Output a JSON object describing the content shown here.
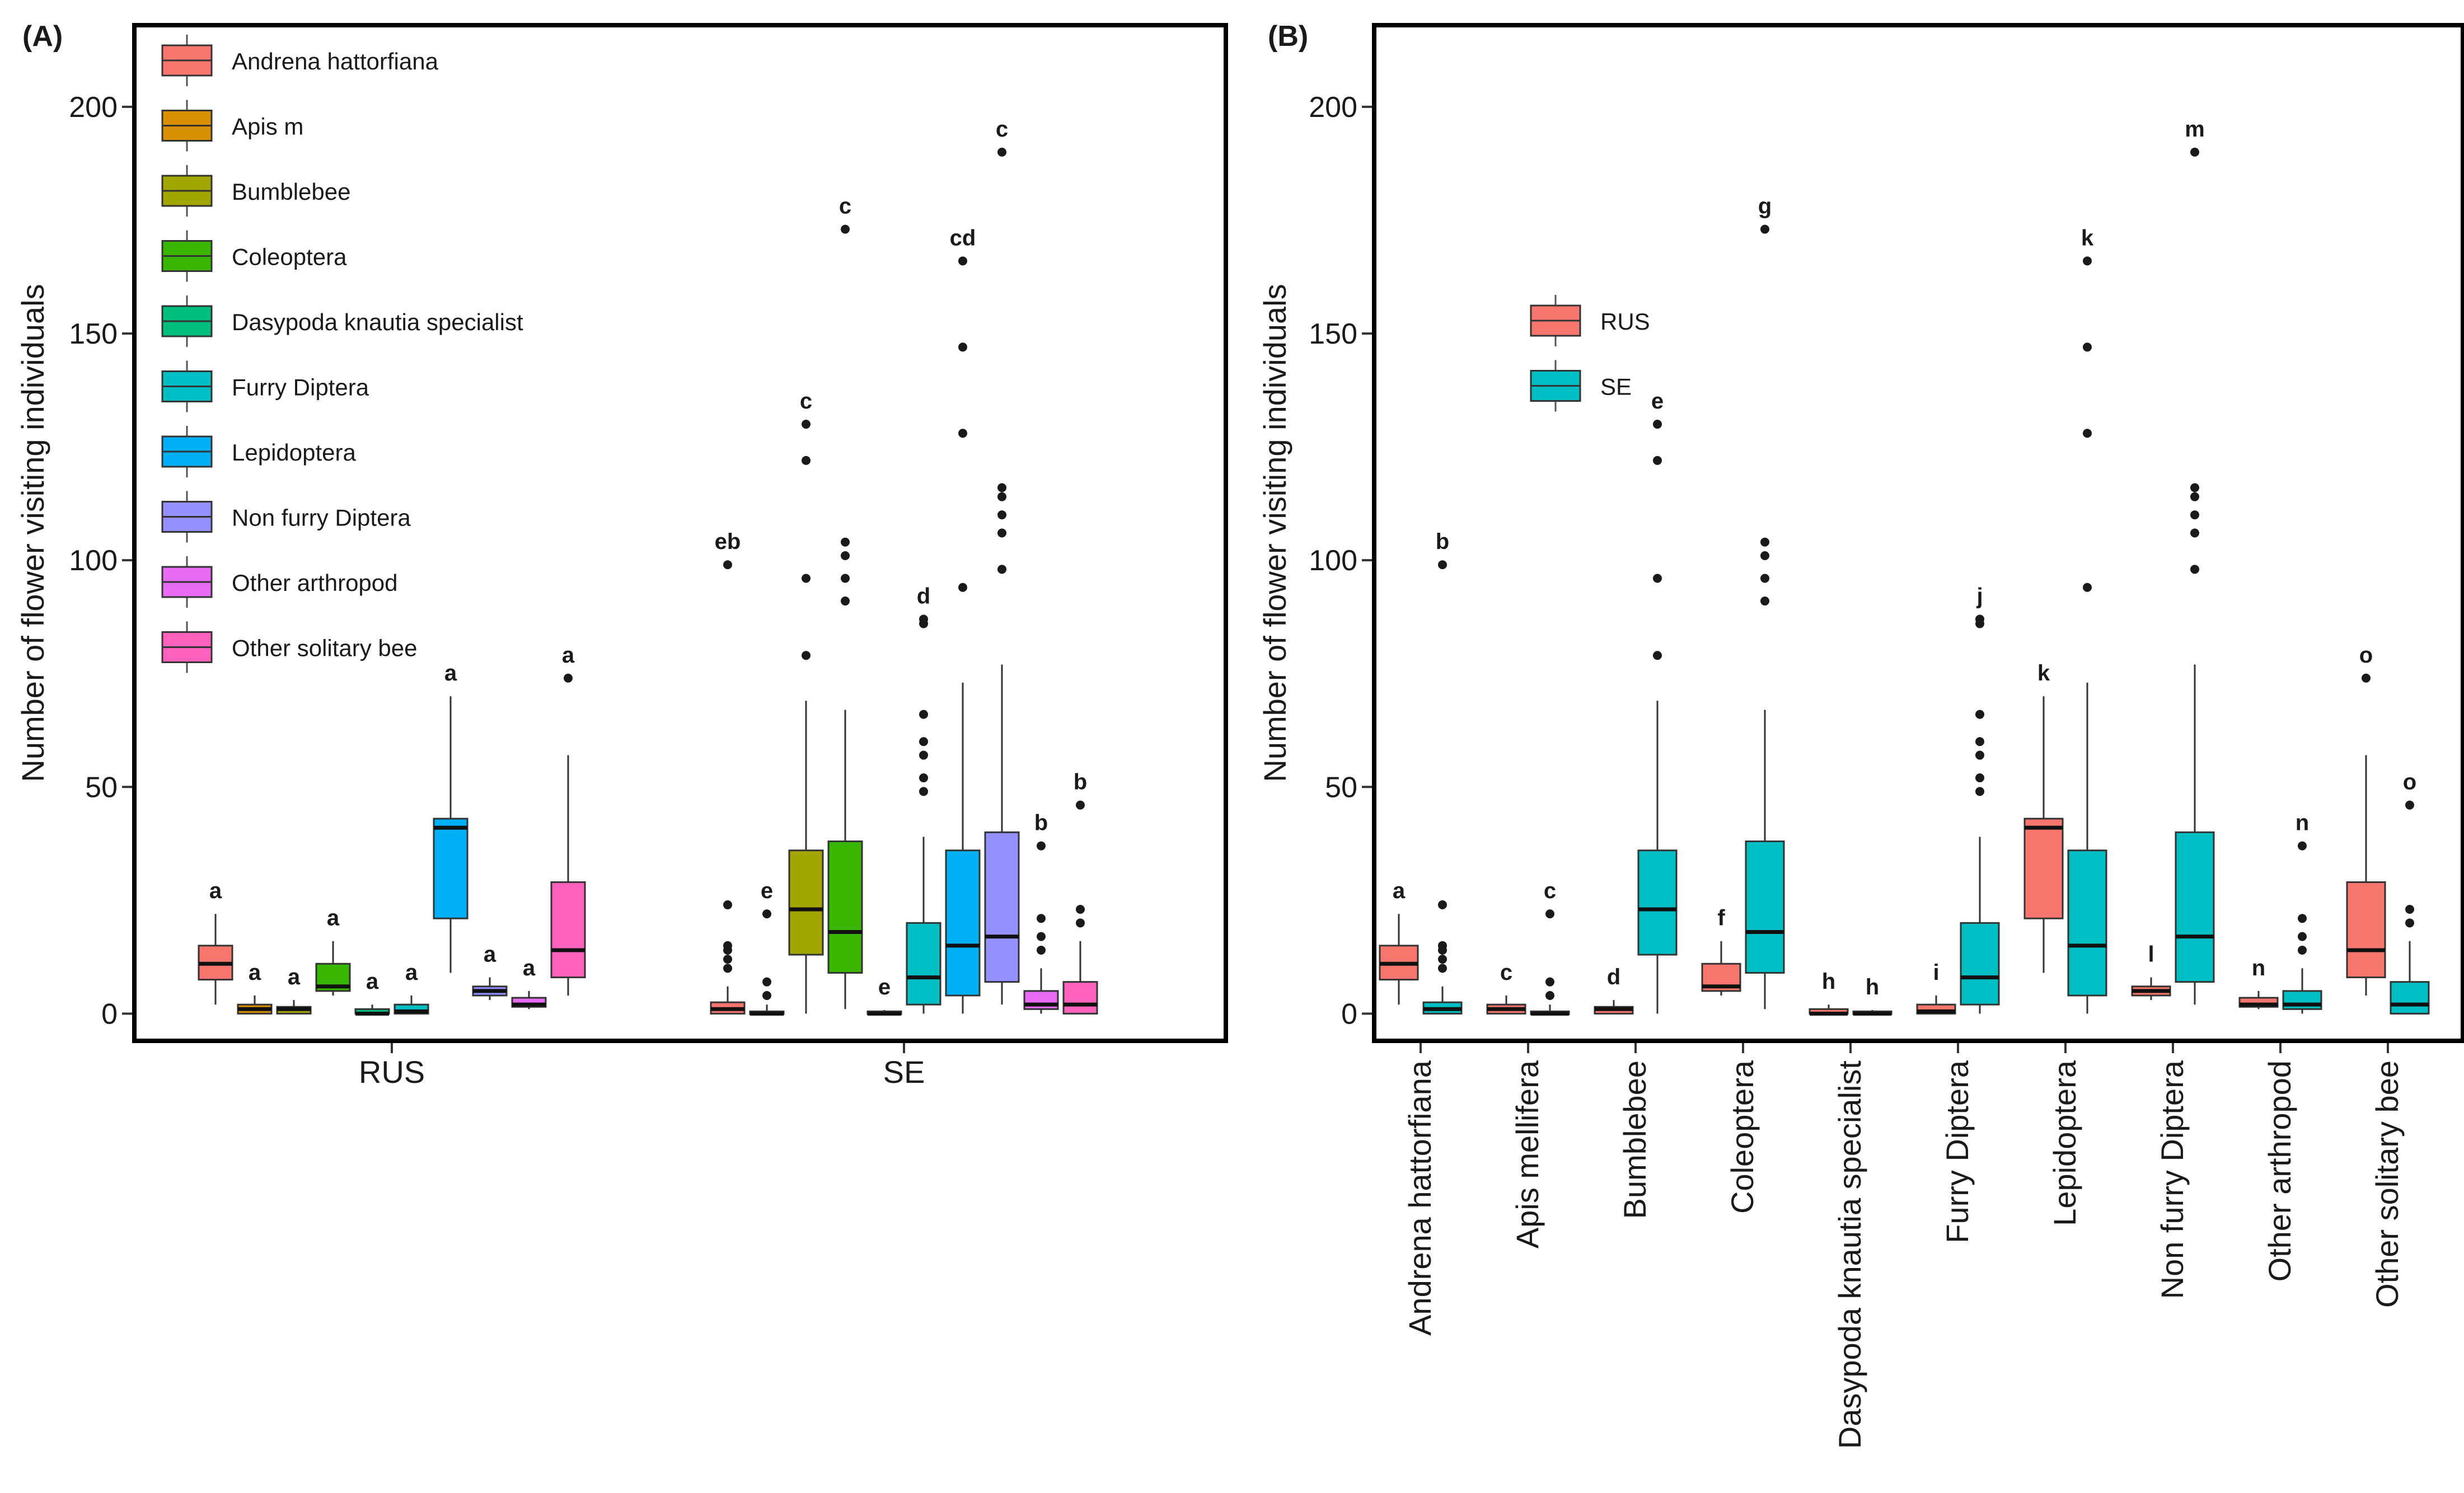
{
  "chart_data": [
    {
      "type": "boxplot",
      "panel_label": "(A)",
      "ylabel": "Number of flower visiting individuals",
      "ylim": [
        -6,
        218
      ],
      "yticks": [
        0,
        50,
        100,
        150,
        200
      ],
      "legend_position": "top-left, inside",
      "legend": [
        {
          "label": "Andrena hattorfiana",
          "color": "#F8766D"
        },
        {
          "label": "Apis m",
          "color": "#D89000"
        },
        {
          "label": "Bumblebee",
          "color": "#A3A500"
        },
        {
          "label": "Coleoptera",
          "color": "#39B600"
        },
        {
          "label": "Dasypoda knautia specialist",
          "color": "#00BF7D"
        },
        {
          "label": "Furry Diptera",
          "color": "#00BFC4"
        },
        {
          "label": "Lepidoptera",
          "color": "#00B0F6"
        },
        {
          "label": "Non furry Diptera",
          "color": "#9590FF"
        },
        {
          "label": "Other arthropod",
          "color": "#E76BF3"
        },
        {
          "label": "Other solitary bee",
          "color": "#FF62BC"
        }
      ],
      "categories": [
        "RUS",
        "SE"
      ],
      "groups": [
        {
          "name": "RUS",
          "boxes": [
            {
              "series": 0,
              "q1": 7.5,
              "median": 11,
              "q3": 15,
              "wlo": 2,
              "whi": 22,
              "outliers": [],
              "letter": "a"
            },
            {
              "series": 1,
              "q1": 0,
              "median": 1,
              "q3": 2,
              "wlo": 0,
              "whi": 4,
              "outliers": [],
              "letter": "a"
            },
            {
              "series": 2,
              "q1": 0,
              "median": 1,
              "q3": 1.5,
              "wlo": 0,
              "whi": 3,
              "outliers": [],
              "letter": "a"
            },
            {
              "series": 3,
              "q1": 5,
              "median": 6,
              "q3": 11,
              "wlo": 4,
              "whi": 16,
              "outliers": [],
              "letter": "a"
            },
            {
              "series": 4,
              "q1": 0,
              "median": 0,
              "q3": 1,
              "wlo": 0,
              "whi": 2,
              "outliers": [],
              "letter": "a"
            },
            {
              "series": 5,
              "q1": 0,
              "median": 0.5,
              "q3": 2,
              "wlo": 0,
              "whi": 4,
              "outliers": [],
              "letter": "a"
            },
            {
              "series": 6,
              "q1": 21,
              "median": 41,
              "q3": 43,
              "wlo": 9,
              "whi": 70,
              "outliers": [],
              "letter": "a"
            },
            {
              "series": 7,
              "q1": 4,
              "median": 5,
              "q3": 6,
              "wlo": 3,
              "whi": 8,
              "outliers": [],
              "letter": "a"
            },
            {
              "series": 8,
              "q1": 1.5,
              "median": 2,
              "q3": 3.5,
              "wlo": 1,
              "whi": 5,
              "outliers": [],
              "letter": "a"
            },
            {
              "series": 9,
              "q1": 8,
              "median": 14,
              "q3": 29,
              "wlo": 4,
              "whi": 57,
              "outliers": [
                74
              ],
              "letter": "a"
            }
          ]
        },
        {
          "name": "SE",
          "boxes": [
            {
              "series": 0,
              "q1": 0,
              "median": 1,
              "q3": 2.5,
              "wlo": 0,
              "whi": 6,
              "outliers": [
                10,
                12,
                14,
                15,
                24,
                99
              ],
              "letter": "eb"
            },
            {
              "series": 1,
              "q1": 0,
              "median": 0,
              "q3": 0.5,
              "wlo": 0,
              "whi": 2,
              "outliers": [
                4,
                7,
                22
              ],
              "letter": "e"
            },
            {
              "series": 2,
              "q1": 13,
              "median": 23,
              "q3": 36,
              "wlo": 0,
              "whi": 69,
              "outliers": [
                79,
                96,
                122,
                130
              ],
              "letter": "c"
            },
            {
              "series": 3,
              "q1": 9,
              "median": 18,
              "q3": 38,
              "wlo": 1,
              "whi": 67,
              "outliers": [
                91,
                96,
                101,
                104,
                173
              ],
              "letter": "c"
            },
            {
              "series": 4,
              "q1": 0,
              "median": 0,
              "q3": 0.5,
              "wlo": 0,
              "whi": 0.8,
              "outliers": [],
              "letter": "e"
            },
            {
              "series": 5,
              "q1": 2,
              "median": 8,
              "q3": 20,
              "wlo": 0,
              "whi": 39,
              "outliers": [
                49,
                52,
                57,
                60,
                66,
                86,
                87
              ],
              "letter": "d"
            },
            {
              "series": 6,
              "q1": 4,
              "median": 15,
              "q3": 36,
              "wlo": 0,
              "whi": 73,
              "outliers": [
                94,
                128,
                147,
                166
              ],
              "letter": "cd"
            },
            {
              "series": 7,
              "q1": 7,
              "median": 17,
              "q3": 40,
              "wlo": 2,
              "whi": 77,
              "outliers": [
                98,
                106,
                110,
                114,
                116,
                190
              ],
              "letter": "c"
            },
            {
              "series": 8,
              "q1": 1,
              "median": 2,
              "q3": 5,
              "wlo": 0,
              "whi": 10,
              "outliers": [
                14,
                17,
                21,
                37
              ],
              "letter": "b"
            },
            {
              "series": 9,
              "q1": 0,
              "median": 2,
              "q3": 7,
              "wlo": 0,
              "whi": 16,
              "outliers": [
                20,
                23,
                46
              ],
              "letter": "b"
            }
          ]
        }
      ]
    },
    {
      "type": "boxplot",
      "panel_label": "(B)",
      "ylabel": "Number of flower visiting individuals",
      "ylim": [
        -6,
        218
      ],
      "yticks": [
        0,
        50,
        100,
        150,
        200
      ],
      "legend_position": "upper-left, inside",
      "legend": [
        {
          "label": "RUS",
          "color": "#F8766D"
        },
        {
          "label": "SE",
          "color": "#00BFC4"
        }
      ],
      "categories": [
        "Andrena hattorfiana",
        "Apis mellifera",
        "Bumblebee",
        "Coleoptera",
        "Dasypoda knautia specialist",
        "Furry Diptera",
        "Lepidoptera",
        "Non furry Diptera",
        "Other arthropod",
        "Other solitary bee"
      ],
      "groups": [
        {
          "name": "Andrena hattorfiana",
          "boxes": [
            {
              "series": 0,
              "q1": 7.5,
              "median": 11,
              "q3": 15,
              "wlo": 2,
              "whi": 22,
              "outliers": [],
              "letter": "a"
            },
            {
              "series": 1,
              "q1": 0,
              "median": 1,
              "q3": 2.5,
              "wlo": 0,
              "whi": 6,
              "outliers": [
                10,
                12,
                14,
                15,
                24,
                99
              ],
              "letter": "b"
            }
          ]
        },
        {
          "name": "Apis mellifera",
          "boxes": [
            {
              "series": 0,
              "q1": 0,
              "median": 1,
              "q3": 2,
              "wlo": 0,
              "whi": 4,
              "outliers": [],
              "letter": "c"
            },
            {
              "series": 1,
              "q1": 0,
              "median": 0,
              "q3": 0.5,
              "wlo": 0,
              "whi": 2,
              "outliers": [
                4,
                7,
                22
              ],
              "letter": "c"
            }
          ]
        },
        {
          "name": "Bumblebee",
          "boxes": [
            {
              "series": 0,
              "q1": 0,
              "median": 1,
              "q3": 1.5,
              "wlo": 0,
              "whi": 3,
              "outliers": [],
              "letter": "d"
            },
            {
              "series": 1,
              "q1": 13,
              "median": 23,
              "q3": 36,
              "wlo": 0,
              "whi": 69,
              "outliers": [
                79,
                96,
                122,
                130
              ],
              "letter": "e"
            }
          ]
        },
        {
          "name": "Coleoptera",
          "boxes": [
            {
              "series": 0,
              "q1": 5,
              "median": 6,
              "q3": 11,
              "wlo": 4,
              "whi": 16,
              "outliers": [],
              "letter": "f"
            },
            {
              "series": 1,
              "q1": 9,
              "median": 18,
              "q3": 38,
              "wlo": 1,
              "whi": 67,
              "outliers": [
                91,
                96,
                101,
                104,
                173
              ],
              "letter": "g"
            }
          ]
        },
        {
          "name": "Dasypoda knautia specialist",
          "boxes": [
            {
              "series": 0,
              "q1": 0,
              "median": 0,
              "q3": 1,
              "wlo": 0,
              "whi": 2,
              "outliers": [],
              "letter": "h"
            },
            {
              "series": 1,
              "q1": 0,
              "median": 0,
              "q3": 0.5,
              "wlo": 0,
              "whi": 0.8,
              "outliers": [],
              "letter": "h"
            }
          ]
        },
        {
          "name": "Furry Diptera",
          "boxes": [
            {
              "series": 0,
              "q1": 0,
              "median": 0.5,
              "q3": 2,
              "wlo": 0,
              "whi": 4,
              "outliers": [],
              "letter": "i"
            },
            {
              "series": 1,
              "q1": 2,
              "median": 8,
              "q3": 20,
              "wlo": 0,
              "whi": 39,
              "outliers": [
                49,
                52,
                57,
                60,
                66,
                86,
                87
              ],
              "letter": "j"
            }
          ]
        },
        {
          "name": "Lepidoptera",
          "boxes": [
            {
              "series": 0,
              "q1": 21,
              "median": 41,
              "q3": 43,
              "wlo": 9,
              "whi": 70,
              "outliers": [],
              "letter": "k"
            },
            {
              "series": 1,
              "q1": 4,
              "median": 15,
              "q3": 36,
              "wlo": 0,
              "whi": 73,
              "outliers": [
                94,
                128,
                147,
                166
              ],
              "letter": "k"
            }
          ]
        },
        {
          "name": "Non furry Diptera",
          "boxes": [
            {
              "series": 0,
              "q1": 4,
              "median": 5,
              "q3": 6,
              "wlo": 3,
              "whi": 8,
              "outliers": [],
              "letter": "l"
            },
            {
              "series": 1,
              "q1": 7,
              "median": 17,
              "q3": 40,
              "wlo": 2,
              "whi": 77,
              "outliers": [
                98,
                106,
                110,
                114,
                116,
                190
              ],
              "letter": "m"
            }
          ]
        },
        {
          "name": "Other arthropod",
          "boxes": [
            {
              "series": 0,
              "q1": 1.5,
              "median": 2,
              "q3": 3.5,
              "wlo": 1,
              "whi": 5,
              "outliers": [],
              "letter": "n"
            },
            {
              "series": 1,
              "q1": 1,
              "median": 2,
              "q3": 5,
              "wlo": 0,
              "whi": 10,
              "outliers": [
                14,
                17,
                21,
                37
              ],
              "letter": "n"
            }
          ]
        },
        {
          "name": "Other solitary bee",
          "boxes": [
            {
              "series": 0,
              "q1": 8,
              "median": 14,
              "q3": 29,
              "wlo": 4,
              "whi": 57,
              "outliers": [
                74
              ],
              "letter": "o"
            },
            {
              "series": 1,
              "q1": 0,
              "median": 2,
              "q3": 7,
              "wlo": 0,
              "whi": 16,
              "outliers": [
                20,
                23,
                46
              ],
              "letter": "o"
            }
          ]
        }
      ]
    }
  ]
}
